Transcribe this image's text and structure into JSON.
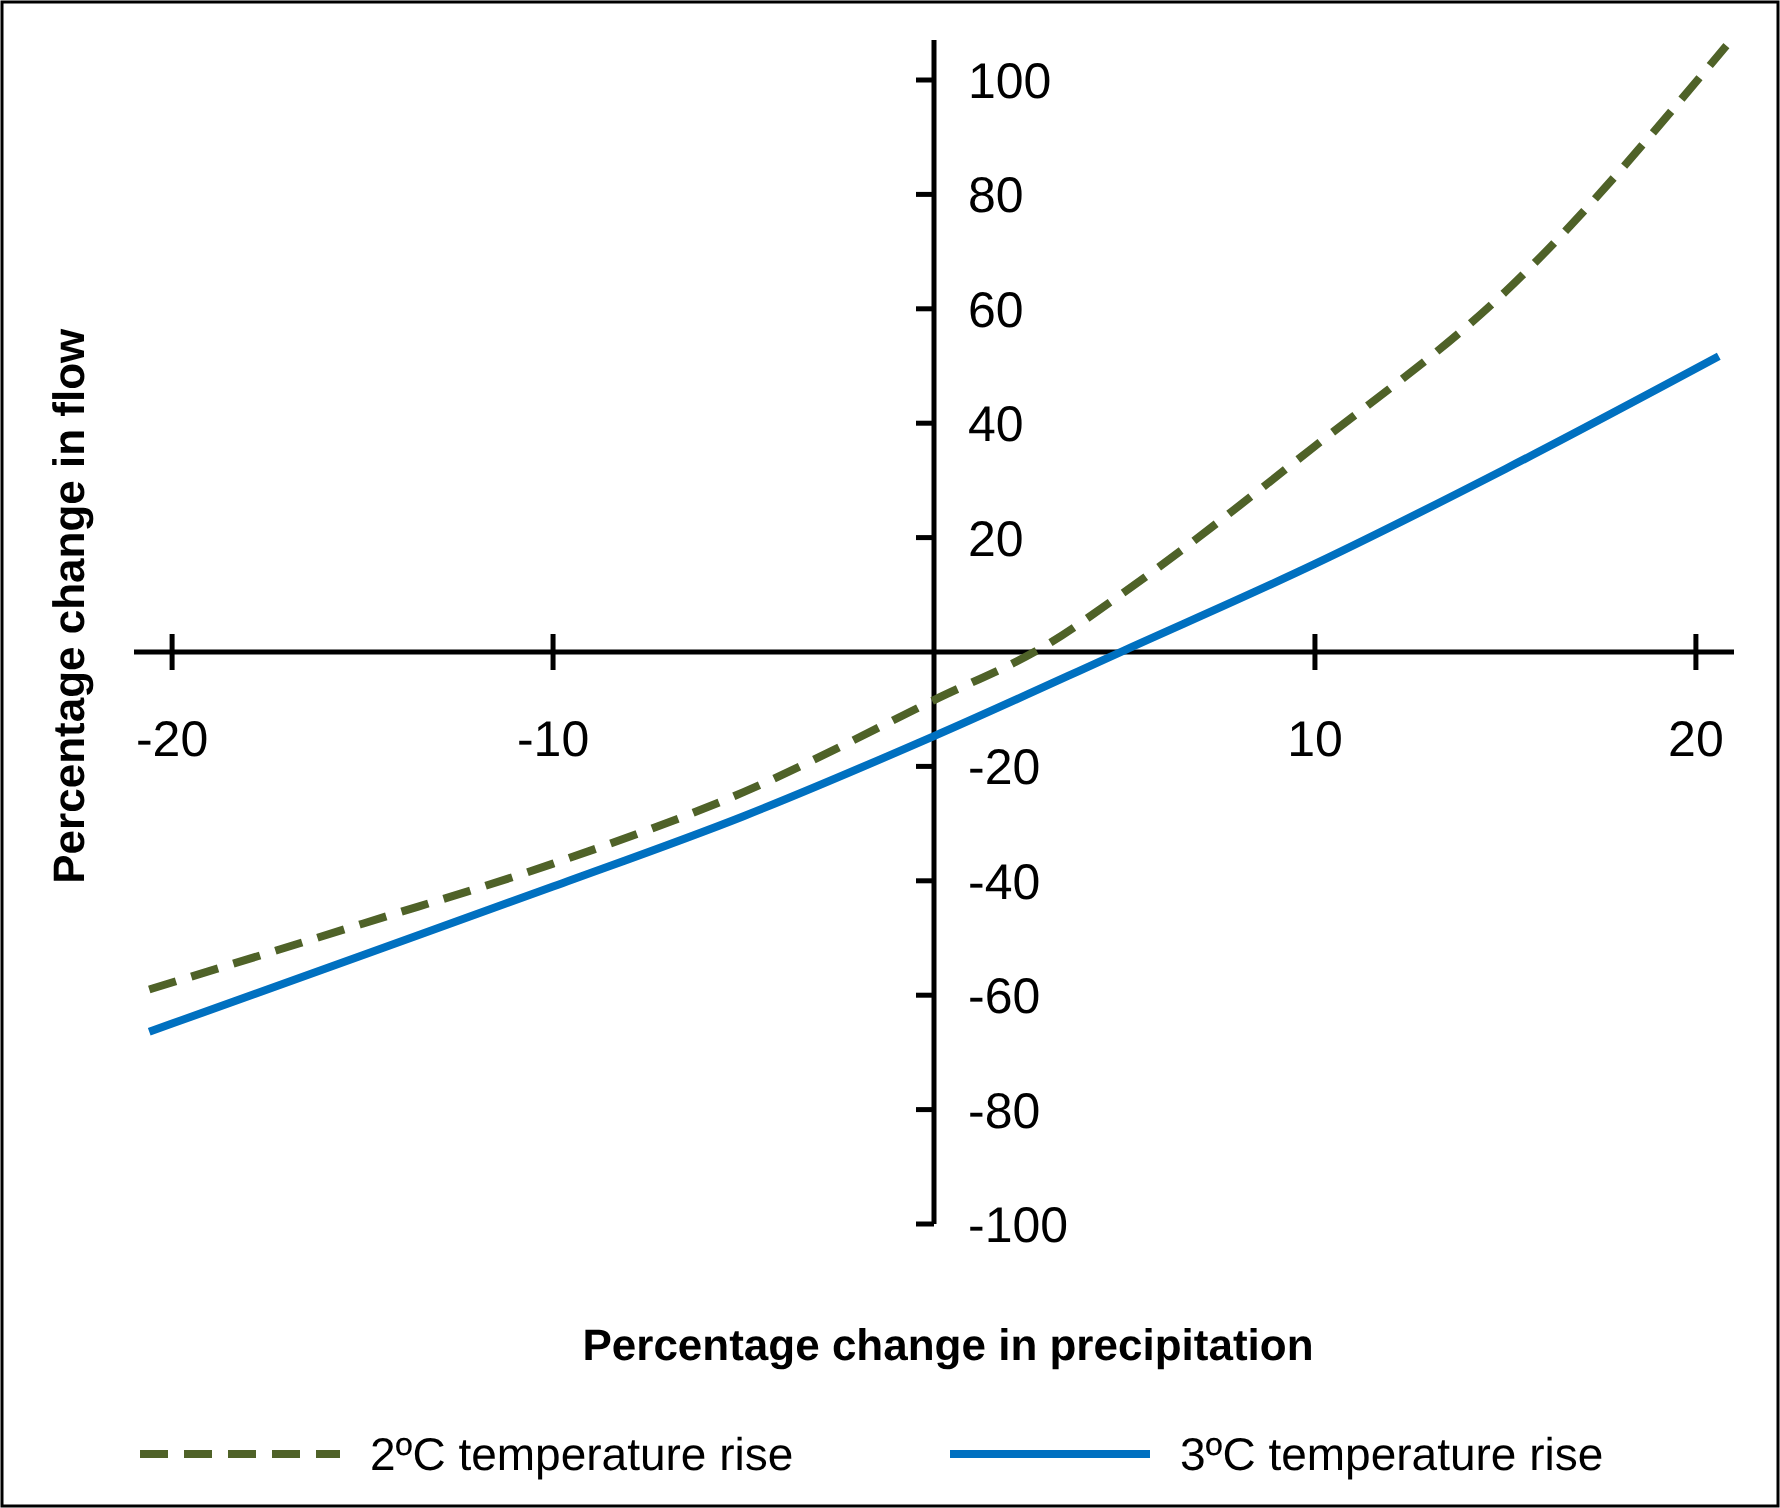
{
  "chart_data": {
    "type": "line",
    "xlabel": "Percentage change in precipitation",
    "ylabel": "Percentage change in flow",
    "xlim": [
      -21,
      21
    ],
    "ylim": [
      -100,
      107
    ],
    "xticks": [
      -20,
      -10,
      10,
      20
    ],
    "yticks": [
      -100,
      -80,
      -60,
      -40,
      -20,
      20,
      40,
      60,
      80,
      100
    ],
    "grid": false,
    "legend": "bottom",
    "series": [
      {
        "name": "2ºC temperature rise",
        "color": "#4f6228",
        "line_style": "dashed",
        "x": [
          -20.6,
          -15,
          -10,
          -5,
          0,
          3,
          5,
          10,
          15,
          20.8
        ],
        "values": [
          -59,
          -47.5,
          -37,
          -24.5,
          -8.4,
          1.4,
          10.5,
          36,
          63,
          106
        ]
      },
      {
        "name": "3ºC temperature rise",
        "color": "#0070c0",
        "line_style": "solid",
        "x": [
          -20.6,
          -15,
          -10,
          -5,
          0,
          5,
          10,
          15,
          20.6
        ],
        "values": [
          -66.4,
          -53,
          -41,
          -28.7,
          -14.7,
          0.3,
          15.4,
          32,
          51.7
        ]
      }
    ]
  }
}
